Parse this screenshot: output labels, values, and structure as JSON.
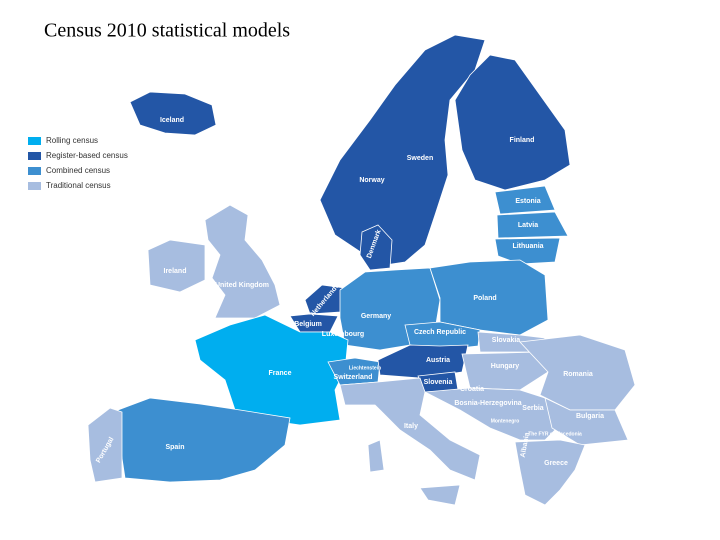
{
  "title": "Census 2010 statistical models",
  "legend": [
    {
      "label": "Rolling census",
      "color": "#00aeef"
    },
    {
      "label": "Register-based census",
      "color": "#2356a6"
    },
    {
      "label": "Combined census",
      "color": "#3d8fd0"
    },
    {
      "label": "Traditional census",
      "color": "#a7bde0"
    }
  ],
  "countries": [
    {
      "label": "Iceland"
    },
    {
      "label": "Finland"
    },
    {
      "label": "Sweden"
    },
    {
      "label": "Norway"
    },
    {
      "label": "Estonia"
    },
    {
      "label": "Latvia"
    },
    {
      "label": "Lithuania"
    },
    {
      "label": "Denmark"
    },
    {
      "label": "Ireland"
    },
    {
      "label": "United Kingdom"
    },
    {
      "label": "Netherlands"
    },
    {
      "label": "Germany"
    },
    {
      "label": "Poland"
    },
    {
      "label": "Belgium"
    },
    {
      "label": "Luxembourg"
    },
    {
      "label": "Czech Republic"
    },
    {
      "label": "Slovakia"
    },
    {
      "label": "France"
    },
    {
      "label": "Liechtenstein"
    },
    {
      "label": "Switzerland"
    },
    {
      "label": "Austria"
    },
    {
      "label": "Hungary"
    },
    {
      "label": "Romania"
    },
    {
      "label": "Slovenia"
    },
    {
      "label": "Croatia"
    },
    {
      "label": "Bosnia-Herzegovina"
    },
    {
      "label": "Serbia"
    },
    {
      "label": "Bulgaria"
    },
    {
      "label": "Montenegro"
    },
    {
      "label": "Italy"
    },
    {
      "label": "Albania"
    },
    {
      "label": "The FYR of Macedonia"
    },
    {
      "label": "Greece"
    },
    {
      "label": "Spain"
    },
    {
      "label": "Portugal"
    }
  ]
}
